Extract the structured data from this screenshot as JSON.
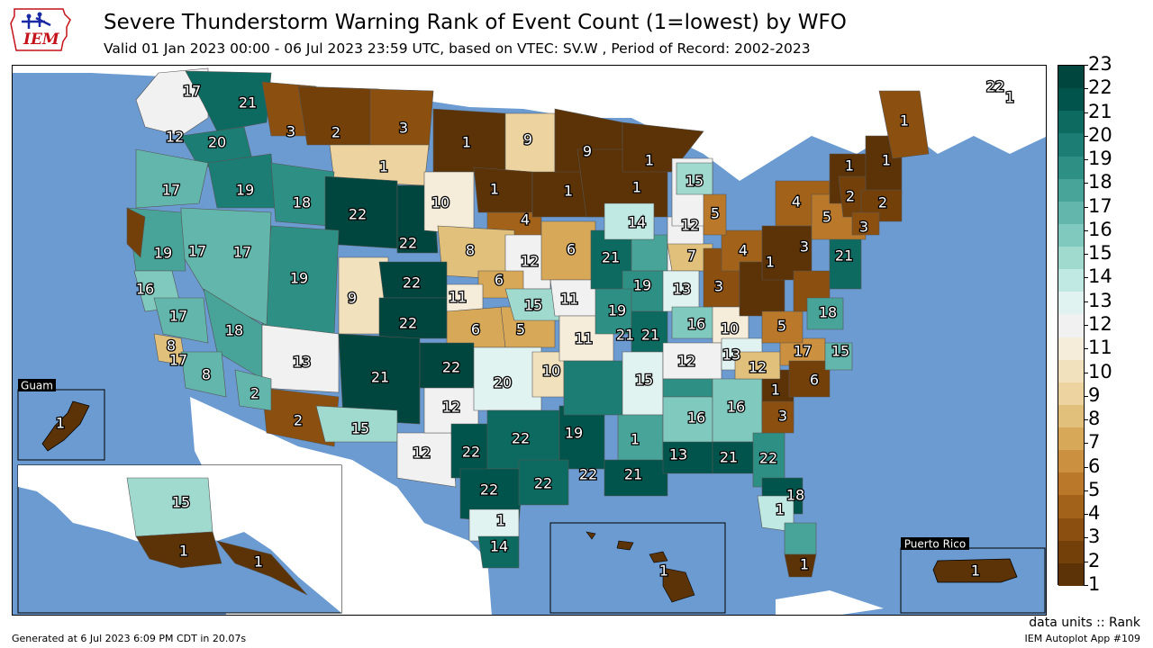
{
  "header": {
    "title": "Severe Thunderstorm Warning Rank of Event Count (1=lowest) by WFO",
    "subtitle": "Valid 01 Jan 2023 00:00 - 06 Jul 2023 23:59 UTC, based on VTEC: SV.W  , Period of Record: 2002-2023",
    "logo_text": "IEM"
  },
  "map": {
    "insets": {
      "guam": "Guam",
      "puerto_rico": "Puerto Rico"
    },
    "colors": {
      "ocean": "#6b9bd1",
      "land": "#ffffff"
    },
    "wfo_ranks": [
      17,
      21,
      12,
      20,
      3,
      2,
      3,
      1,
      9,
      1,
      9,
      1,
      17,
      19,
      18,
      22,
      22,
      1,
      1,
      10,
      1,
      4,
      1,
      14,
      15,
      12,
      5,
      1,
      1,
      4,
      2,
      5,
      2,
      3,
      19,
      17,
      17,
      8,
      6,
      12,
      6,
      16,
      19,
      9,
      22,
      11,
      11,
      15,
      13,
      17,
      18,
      22,
      6,
      5,
      11,
      21,
      19,
      21,
      16,
      7,
      4,
      3,
      3,
      1,
      21,
      10,
      5,
      18,
      12,
      21,
      13,
      10,
      20,
      13,
      12,
      8,
      17,
      6,
      2,
      17,
      12,
      19,
      16,
      16,
      1,
      3,
      8,
      15,
      2,
      15,
      12,
      22,
      21,
      22,
      22,
      22,
      19,
      22,
      22,
      21,
      22,
      13,
      21,
      14,
      18,
      1,
      15,
      1,
      1,
      1,
      1,
      22
    ],
    "alaska_ranks": [
      15,
      1,
      1
    ],
    "guam_rank": 1,
    "hawaii_rank": 1,
    "puerto_rico_rank": 1
  },
  "colorbar": {
    "ticks": [
      "23",
      "22",
      "21",
      "20",
      "19",
      "18",
      "17",
      "16",
      "15",
      "14",
      "13",
      "12",
      "11",
      "10",
      "9",
      "8",
      "7",
      "6",
      "5",
      "4",
      "3",
      "2",
      "1"
    ],
    "colors": [
      "#01463e",
      "#01544b",
      "#0d6a60",
      "#1b7d73",
      "#2e9085",
      "#48a499",
      "#62b6ab",
      "#80c9be",
      "#a0dacf",
      "#c1e9e3",
      "#e1f3f1",
      "#f1f1f1",
      "#f5edda",
      "#f1e1bd",
      "#ecd39f",
      "#e1c07c",
      "#d8a859",
      "#cc9140",
      "#b9782a",
      "#a2621a",
      "#8b4f0f",
      "#734009",
      "#5b3306"
    ]
  },
  "footer": {
    "units": "data units :: Rank",
    "generated": "Generated at 6 Jul 2023 6:09 PM CDT in 20.07s",
    "app": "IEM Autoplot App #109"
  }
}
